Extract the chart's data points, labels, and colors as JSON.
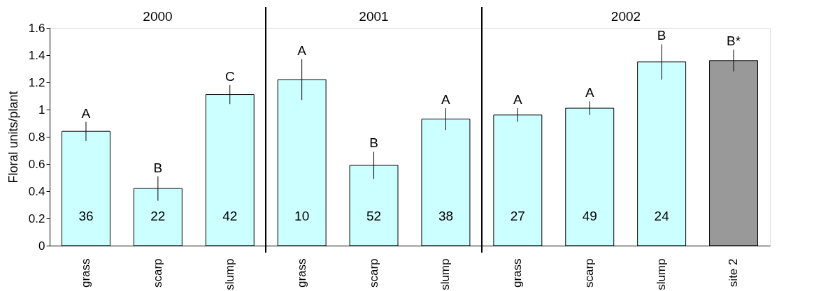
{
  "chart_data": {
    "type": "bar",
    "ylabel": "Floral units/plant",
    "categories": [
      "grass",
      "scarp",
      "slump",
      "grass",
      "scarp",
      "slump",
      "grass",
      "scarp",
      "slump",
      "site 2"
    ],
    "values": [
      0.84,
      0.42,
      1.11,
      1.22,
      0.59,
      0.93,
      0.96,
      1.01,
      1.35,
      1.36
    ],
    "errors": [
      0.07,
      0.09,
      0.07,
      0.15,
      0.1,
      0.08,
      0.05,
      0.05,
      0.13,
      0.08
    ],
    "colors": [
      "#ccffff",
      "#ccffff",
      "#ccffff",
      "#ccffff",
      "#ccffff",
      "#ccffff",
      "#ccffff",
      "#ccffff",
      "#ccffff",
      "#999999"
    ],
    "ylim": [
      0,
      1.6
    ],
    "yticks": [
      0,
      0.2,
      0.4,
      0.6,
      0.8,
      1,
      1.2,
      1.4,
      1.6
    ],
    "grid": false,
    "annotations": [
      "A",
      "B",
      "C",
      "A",
      "B",
      "A",
      "A",
      "A",
      "B",
      "B*",
      "36",
      "22",
      "42",
      "10",
      "52",
      "38",
      "27",
      "49",
      "24",
      "2000",
      "2001",
      "2002"
    ]
  }
}
